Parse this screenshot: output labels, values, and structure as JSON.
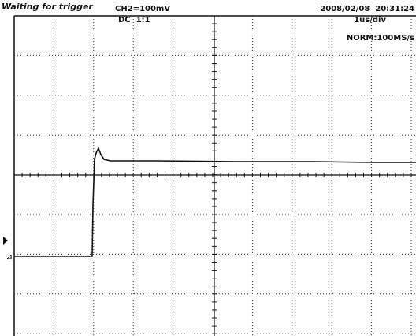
{
  "status": "Waiting for trigger",
  "channel": {
    "scale": "CH2=100mV",
    "coupling": "DC  1:1"
  },
  "timestamp": "2008/02/08  20:31:24",
  "timebase": "1us/div",
  "acquisition": "NORM:100MS/s"
}
